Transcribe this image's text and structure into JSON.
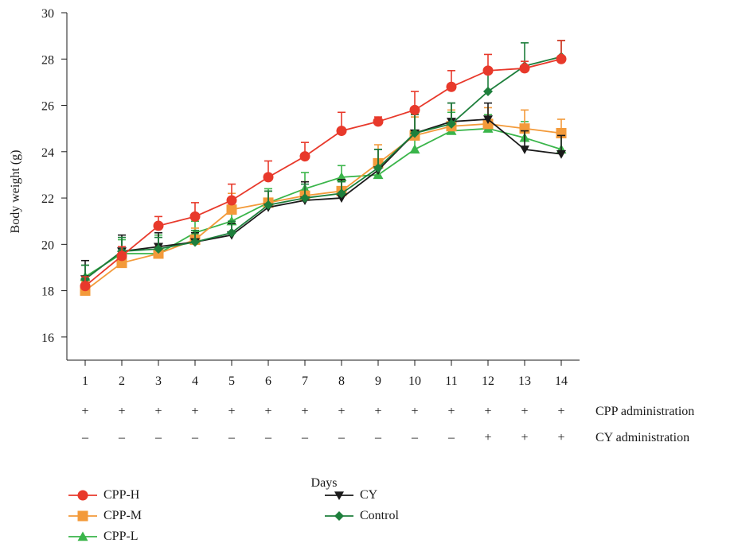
{
  "chart_data": {
    "type": "line",
    "title": "",
    "xlabel": "Days",
    "ylabel": "Body weight (g)",
    "x": [
      1,
      2,
      3,
      4,
      5,
      6,
      7,
      8,
      9,
      10,
      11,
      12,
      13,
      14
    ],
    "ylim": [
      15,
      30
    ],
    "yticks": [
      16,
      18,
      20,
      22,
      24,
      26,
      28,
      30
    ],
    "grid": false,
    "legend_position": "bottom",
    "series": [
      {
        "name": "CPP-H",
        "color": "#e8392b",
        "marker": "circle",
        "values": [
          18.2,
          19.5,
          20.8,
          21.2,
          21.9,
          22.9,
          23.8,
          24.9,
          25.3,
          25.8,
          26.8,
          27.5,
          27.6,
          28.0
        ],
        "errors": [
          0.4,
          0.4,
          0.4,
          0.6,
          0.7,
          0.7,
          0.6,
          0.8,
          0.2,
          0.8,
          0.7,
          0.7,
          0.3,
          0.8
        ]
      },
      {
        "name": "CPP-M",
        "color": "#f39a3a",
        "marker": "square",
        "values": [
          18.0,
          19.2,
          19.6,
          20.2,
          21.5,
          21.8,
          22.1,
          22.3,
          23.5,
          24.7,
          25.1,
          25.2,
          25.0,
          24.8
        ],
        "errors": [
          0.4,
          0.5,
          0.3,
          0.5,
          0.7,
          0.5,
          0.6,
          0.5,
          0.8,
          0.8,
          0.7,
          0.7,
          0.8,
          0.6
        ]
      },
      {
        "name": "CPP-L",
        "color": "#3ab54a",
        "marker": "triangle-up",
        "values": [
          18.6,
          19.6,
          19.6,
          20.5,
          21.0,
          21.8,
          22.4,
          22.9,
          23.0,
          24.1,
          24.9,
          25.0,
          24.6,
          24.1
        ],
        "errors": [
          0.5,
          0.6,
          0.8,
          0.5,
          0.4,
          0.6,
          0.7,
          0.5,
          0.3,
          0.6,
          0.8,
          0.6,
          0.7,
          0.6
        ]
      },
      {
        "name": "CY",
        "color": "#1a1a1a",
        "marker": "triangle-down",
        "values": [
          18.5,
          19.7,
          19.9,
          20.1,
          20.4,
          21.6,
          21.9,
          22.0,
          23.2,
          24.8,
          25.3,
          25.4,
          24.1,
          23.9
        ],
        "errors": [
          0.8,
          0.7,
          0.6,
          0.4,
          0.5,
          0.7,
          0.8,
          0.8,
          0.9,
          0.8,
          0.8,
          0.7,
          0.8,
          0.8
        ]
      },
      {
        "name": "Control",
        "color": "#1e7f3c",
        "marker": "diamond",
        "values": [
          18.5,
          19.7,
          19.8,
          20.1,
          20.5,
          21.7,
          22.0,
          22.2,
          23.3,
          24.8,
          25.2,
          26.6,
          27.7,
          28.1
        ],
        "errors": [
          0.6,
          0.6,
          0.5,
          0.5,
          0.5,
          0.6,
          0.6,
          0.5,
          0.8,
          0.8,
          0.9,
          0.8,
          1.0,
          0.7
        ]
      }
    ],
    "rows": [
      {
        "label": "CPP administration",
        "signs": [
          "+",
          "+",
          "+",
          "+",
          "+",
          "+",
          "+",
          "+",
          "+",
          "+",
          "+",
          "+",
          "+",
          "+"
        ]
      },
      {
        "label": "CY administration",
        "signs": [
          "–",
          "–",
          "–",
          "–",
          "–",
          "–",
          "–",
          "–",
          "–",
          "–",
          "–",
          "+",
          "+",
          "+"
        ]
      }
    ]
  }
}
